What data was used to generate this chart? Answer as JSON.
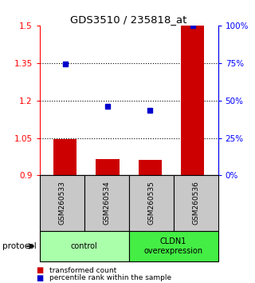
{
  "title": "GDS3510 / 235818_at",
  "samples": [
    "GSM260533",
    "GSM260534",
    "GSM260535",
    "GSM260536"
  ],
  "bar_values": [
    1.046,
    0.965,
    0.962,
    1.5
  ],
  "bar_bottom": 0.9,
  "bar_color": "#cc0000",
  "dot_values": [
    0.745,
    0.46,
    0.435,
    1.0
  ],
  "dot_color": "#0000cc",
  "ylim_left": [
    0.9,
    1.5
  ],
  "ylim_right": [
    0.0,
    1.0
  ],
  "yticks_left": [
    0.9,
    1.05,
    1.2,
    1.35,
    1.5
  ],
  "ytick_labels_left": [
    "0.9",
    "1.05",
    "1.2",
    "1.35",
    "1.5"
  ],
  "yticks_right": [
    0.0,
    0.25,
    0.5,
    0.75,
    1.0
  ],
  "ytick_labels_right": [
    "0%",
    "25%",
    "50%",
    "75%",
    "100%"
  ],
  "hgrid_values": [
    1.05,
    1.2,
    1.35
  ],
  "groups": [
    {
      "label": "control",
      "samples": [
        0,
        1
      ],
      "color": "#aaffaa"
    },
    {
      "label": "CLDN1\noverexpression",
      "samples": [
        2,
        3
      ],
      "color": "#44ee44"
    }
  ],
  "protocol_label": "protocol",
  "bar_width": 0.55,
  "bg_color_samples": "#c8c8c8",
  "legend_bar_label": "transformed count",
  "legend_dot_label": "percentile rank within the sample"
}
